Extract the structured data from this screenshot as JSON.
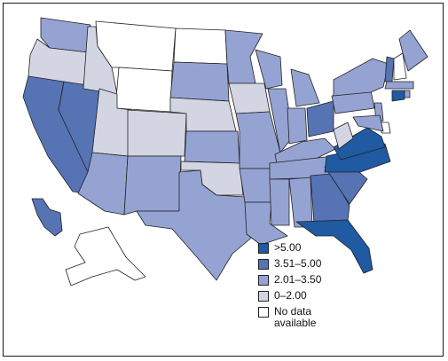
{
  "legend": {
    "items": [
      {
        "label": ">5.00",
        "color": "#1f5aa3"
      },
      {
        "label": "3.51–5.00",
        "color": "#5673b4"
      },
      {
        "label": "2.01–3.50",
        "color": "#95a3d3"
      },
      {
        "label": "0–2.00",
        "color": "#d4d5e3"
      },
      {
        "label": "No data available",
        "color": "#ffffff"
      }
    ]
  },
  "states": {
    "WA": 2,
    "OR": 3,
    "CA": 1,
    "NV": 1,
    "ID": 3,
    "MT": 4,
    "WY": 4,
    "UT": 3,
    "AZ": 2,
    "CO": 3,
    "NM": 2,
    "ND": 4,
    "SD": 2,
    "NE": 3,
    "KS": 2,
    "OK": 3,
    "TX": 2,
    "MN": 2,
    "IA": 3,
    "MO": 2,
    "AR": 2,
    "LA": 2,
    "WI": 2,
    "IL": 2,
    "MI": 2,
    "IN": 2,
    "OH": 1,
    "KY": 2,
    "TN": 2,
    "MS": 2,
    "AL": 2,
    "GA": 1,
    "FL": 0,
    "SC": 1,
    "NC": 0,
    "VA": 0,
    "WV": 3,
    "PA": 2,
    "NY": 2,
    "VT": 1,
    "NH": 4,
    "ME": 2,
    "MA": 2,
    "CT": 0,
    "RI": 2,
    "NJ": 2,
    "DE": 4,
    "MD": 2,
    "AK": 4,
    "HI": 1
  }
}
